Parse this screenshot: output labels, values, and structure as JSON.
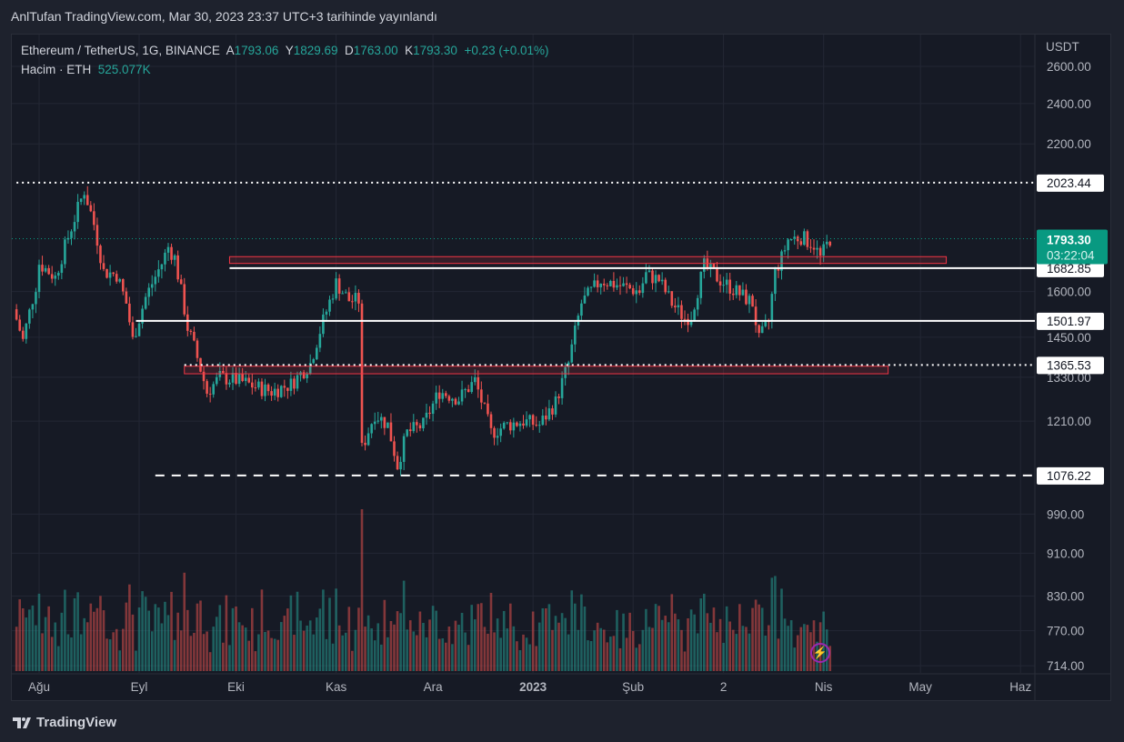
{
  "header": {
    "title": "AnlTufan TradingView.com, Mar 30, 2023 23:37 UTC+3 tarihinde yayınlandı"
  },
  "legend": {
    "symbol": "Ethereum / TetherUS, 1G, BINANCE",
    "open_label": "A",
    "open": "1793.06",
    "high_label": "Y",
    "high": "1829.69",
    "low_label": "D",
    "low": "1763.00",
    "close_label": "K",
    "close": "1793.30",
    "change": "+0.23 (+0.01%)",
    "volume_label": "Hacim · ETH",
    "volume": "525.077K"
  },
  "footer": {
    "logo": "TradingView"
  },
  "colors": {
    "up": "#26a69a",
    "down": "#ef5350",
    "bg": "#161a25",
    "accent": "#089981"
  },
  "chart_data": {
    "type": "candlestick",
    "title": "Ethereum / TetherUS, 1G, BINANCE",
    "ylabel": "USDT",
    "yscale": "log",
    "ylim": [
      700,
      2700
    ],
    "y_ticks": [
      "2600.00",
      "2400.00",
      "2200.00",
      "1600.00",
      "1450.00",
      "1330.00",
      "1210.00",
      "990.00",
      "910.00",
      "830.00",
      "770.00",
      "714.00"
    ],
    "y_tick_values": [
      2600,
      2400,
      2200,
      1600,
      1450,
      1330,
      1210,
      990,
      910,
      830,
      770,
      714
    ],
    "x_ticks": [
      "Ağu",
      "Eyl",
      "Eki",
      "Kas",
      "Ara",
      "2023",
      "Şub",
      "2",
      "Nis",
      "May",
      "Haz"
    ],
    "x_tick_days": [
      0,
      31,
      61,
      92,
      122,
      153,
      184,
      212,
      243,
      273,
      304
    ],
    "x_day_origin": "2022-08-01",
    "approx_close_path": [
      [
        -8,
        1540
      ],
      [
        -5,
        1440
      ],
      [
        -1,
        1620
      ],
      [
        0,
        1700
      ],
      [
        5,
        1650
      ],
      [
        11,
        1874
      ],
      [
        14,
        1990
      ],
      [
        17,
        1850
      ],
      [
        20,
        1670
      ],
      [
        24,
        1660
      ],
      [
        27,
        1560
      ],
      [
        29,
        1440
      ],
      [
        33,
        1580
      ],
      [
        38,
        1700
      ],
      [
        40,
        1761
      ],
      [
        42,
        1720
      ],
      [
        46,
        1480
      ],
      [
        48,
        1420
      ],
      [
        52,
        1288
      ],
      [
        56,
        1330
      ],
      [
        62,
        1320
      ],
      [
        68,
        1300
      ],
      [
        72,
        1290
      ],
      [
        78,
        1310
      ],
      [
        84,
        1370
      ],
      [
        87,
        1470
      ],
      [
        92,
        1630
      ],
      [
        96,
        1570
      ],
      [
        99,
        1570
      ],
      [
        100,
        1140
      ],
      [
        104,
        1230
      ],
      [
        108,
        1200
      ],
      [
        111,
        1100
      ],
      [
        114,
        1180
      ],
      [
        119,
        1200
      ],
      [
        124,
        1290
      ],
      [
        130,
        1270
      ],
      [
        135,
        1320
      ],
      [
        140,
        1180
      ],
      [
        145,
        1200
      ],
      [
        150,
        1210
      ],
      [
        155,
        1200
      ],
      [
        160,
        1260
      ],
      [
        164,
        1370
      ],
      [
        168,
        1560
      ],
      [
        174,
        1640
      ],
      [
        180,
        1620
      ],
      [
        186,
        1600
      ],
      [
        188,
        1660
      ],
      [
        192,
        1640
      ],
      [
        196,
        1560
      ],
      [
        200,
        1510
      ],
      [
        202,
        1520
      ],
      [
        206,
        1690
      ],
      [
        211,
        1640
      ],
      [
        216,
        1600
      ],
      [
        221,
        1560
      ],
      [
        223,
        1440
      ],
      [
        226,
        1500
      ],
      [
        228,
        1670
      ],
      [
        230,
        1720
      ],
      [
        232,
        1790
      ],
      [
        236,
        1800
      ],
      [
        240,
        1770
      ],
      [
        242,
        1720
      ],
      [
        245,
        1793.3
      ]
    ],
    "last_price": {
      "value": "1793.30",
      "countdown": "03:22:04"
    },
    "levels": [
      {
        "value": "2023.44",
        "style": "dotted",
        "from_day": -7
      },
      {
        "value": "1682.85",
        "style": "solid",
        "from_day": 59
      },
      {
        "value": "1501.97",
        "style": "solid",
        "from_day": 30
      },
      {
        "value": "1365.53",
        "style": "dotted",
        "from_day": 45
      },
      {
        "value": "1076.22",
        "style": "dashed",
        "from_day": 36
      }
    ],
    "zones": [
      {
        "top": 1725,
        "bottom": 1700,
        "from_day": 59,
        "to_day": 281
      },
      {
        "top": 1362,
        "bottom": 1340,
        "from_day": 45,
        "to_day": 263
      }
    ]
  }
}
